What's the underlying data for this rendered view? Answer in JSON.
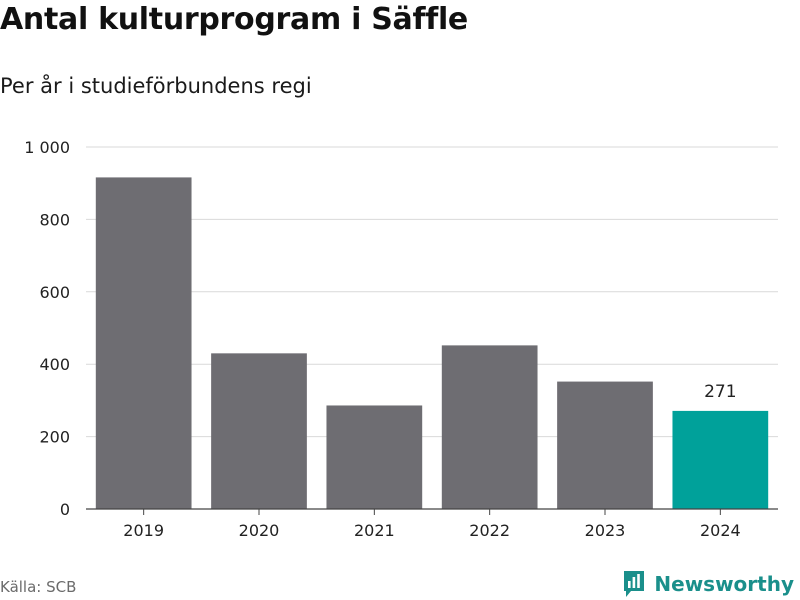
{
  "header": {
    "title": "Antal kulturprogram i Säffle",
    "subtitle": "Per år i studieförbundens regi"
  },
  "footer": {
    "source": "Källa: SCB",
    "brand": "Newsworthy"
  },
  "colors": {
    "bar": "#6e6d72",
    "highlight": "#00a19a",
    "grid": "#d9d9d9",
    "axis": "#444444",
    "brand": "#1a8f8b"
  },
  "chart_data": {
    "type": "bar",
    "title": "Antal kulturprogram i Säffle",
    "subtitle": "Per år i studieförbundens regi",
    "categories": [
      "2019",
      "2020",
      "2021",
      "2022",
      "2023",
      "2024"
    ],
    "values": [
      916,
      430,
      286,
      452,
      352,
      271
    ],
    "ylim": [
      0,
      1000
    ],
    "yticks": [
      0,
      200,
      400,
      600,
      800,
      1000
    ],
    "ytick_labels": [
      "0",
      "200",
      "400",
      "600",
      "800",
      "1 000"
    ],
    "highlight_index": 5,
    "data_labels": [
      {
        "index": 5,
        "text": "271"
      }
    ],
    "grid": true,
    "legend": "none"
  }
}
